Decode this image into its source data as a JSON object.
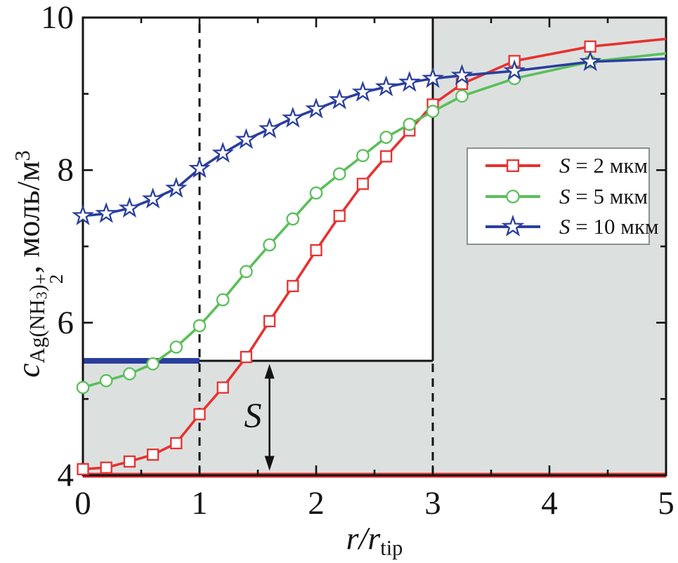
{
  "chart_data": {
    "type": "line",
    "title": "",
    "xlabel": "r/r_tip",
    "ylabel": "c_Ag(NH3)2+, моль/м3",
    "xlabel_parts": {
      "num": "r",
      "slash": "/",
      "den": "r",
      "den_sub": "tip"
    },
    "ylabel_parts": {
      "var": "c",
      "sub1": "Ag(NH",
      "sub1_sub": "3",
      "sub2": ")",
      "sup_plus": "+",
      "sub_2": "2",
      "rest": ", моль/м",
      "sup3": "3"
    },
    "xlim": [
      0,
      5
    ],
    "ylim": [
      4,
      10
    ],
    "x_ticks": [
      0,
      1,
      2,
      3,
      4,
      5
    ],
    "x_tick_labels": [
      "0",
      "1",
      "2",
      "3",
      "4",
      "5"
    ],
    "x_minor_ticks": [
      0.5,
      1.5,
      2.5,
      3.5,
      4.5
    ],
    "y_ticks": [
      4,
      6,
      8,
      10
    ],
    "y_tick_labels": [
      "4",
      "6",
      "8",
      "10"
    ],
    "y_minor_ticks": [
      5,
      7,
      9
    ],
    "grid": false,
    "legend_position": "middle-right",
    "colors": {
      "red": "#e73230",
      "green": "#5bbf5a",
      "blue": "#2a3f9d",
      "shade": "#dce1e0",
      "frame": "#141414",
      "legend_border": "#8a9090",
      "text": "#151515"
    },
    "regions": [
      {
        "name": "shaded-region-lower-band",
        "x1": 0,
        "x2": 5,
        "y1": 4,
        "y2": 5.5
      },
      {
        "name": "shaded-region-outer-box",
        "x1": 3,
        "x2": 5,
        "y1": 5.5,
        "y2": 10
      }
    ],
    "lines": [
      {
        "name": "dashed-line-x1",
        "x": 1,
        "y1": 4,
        "y2": 10,
        "style": "dashed",
        "color": "frame",
        "width": 3
      },
      {
        "name": "dashed-line-x3",
        "x": 3,
        "y1": 4,
        "y2": 5.5,
        "style": "dashed",
        "color": "frame",
        "width": 3
      },
      {
        "name": "outer-box-left-edge",
        "x": 3,
        "y1": 5.5,
        "y2": 10,
        "style": "solid",
        "color": "frame",
        "width": 3
      },
      {
        "name": "step-level-line",
        "y": 5.5,
        "x1": 1,
        "x2": 3,
        "style": "solid",
        "color": "frame",
        "width": 3
      },
      {
        "name": "bulk-level-line",
        "y": 4,
        "x1": 0,
        "x2": 5,
        "style": "solid",
        "color": "red",
        "width": 7
      },
      {
        "name": "tip-level-line",
        "y": 5.5,
        "x1": 0,
        "x2": 1,
        "style": "solid",
        "color": "blue",
        "width": 8
      }
    ],
    "annotation": {
      "label": "S",
      "arrow_x": 1.6,
      "arrow_y1": 4.06,
      "arrow_y2": 5.46
    },
    "marker_x_max": 4.6,
    "series": [
      {
        "id": "s-2",
        "label": "S = 2 мкм",
        "legend_var": "S",
        "legend_rest": " = 2 мкм",
        "color": "red",
        "marker": "square",
        "x": [
          0,
          0.2,
          0.4,
          0.6,
          0.8,
          1,
          1.2,
          1.4,
          1.6,
          1.8,
          2,
          2.2,
          2.4,
          2.6,
          2.8,
          3,
          3.25,
          3.7,
          4.35,
          5
        ],
        "y": [
          4.08,
          4.1,
          4.18,
          4.27,
          4.42,
          4.8,
          5.15,
          5.55,
          6.02,
          6.48,
          6.95,
          7.4,
          7.82,
          8.18,
          8.52,
          8.86,
          9.13,
          9.43,
          9.62,
          9.72
        ]
      },
      {
        "id": "s-5",
        "label": "S = 5 мкм",
        "legend_var": "S",
        "legend_rest": " = 5 мкм",
        "color": "green",
        "marker": "circle",
        "x": [
          0,
          0.2,
          0.4,
          0.6,
          0.8,
          1,
          1.2,
          1.4,
          1.6,
          1.8,
          2,
          2.2,
          2.4,
          2.6,
          2.8,
          3,
          3.25,
          3.7,
          4.35,
          5
        ],
        "y": [
          5.15,
          5.24,
          5.33,
          5.46,
          5.68,
          5.96,
          6.3,
          6.67,
          7.02,
          7.36,
          7.7,
          7.95,
          8.19,
          8.43,
          8.6,
          8.77,
          8.97,
          9.2,
          9.42,
          9.53
        ]
      },
      {
        "id": "s-10",
        "label": "S = 10 мкм",
        "legend_var": "S",
        "legend_rest": " = 10 мкм",
        "color": "blue",
        "marker": "star",
        "x": [
          0,
          0.2,
          0.4,
          0.6,
          0.8,
          1,
          1.2,
          1.4,
          1.6,
          1.8,
          2,
          2.2,
          2.4,
          2.6,
          2.8,
          3,
          3.25,
          3.7,
          4.35,
          5
        ],
        "y": [
          7.4,
          7.43,
          7.5,
          7.62,
          7.76,
          8.02,
          8.22,
          8.4,
          8.54,
          8.68,
          8.8,
          8.92,
          9.02,
          9.09,
          9.15,
          9.2,
          9.24,
          9.3,
          9.42,
          9.46
        ]
      }
    ]
  }
}
